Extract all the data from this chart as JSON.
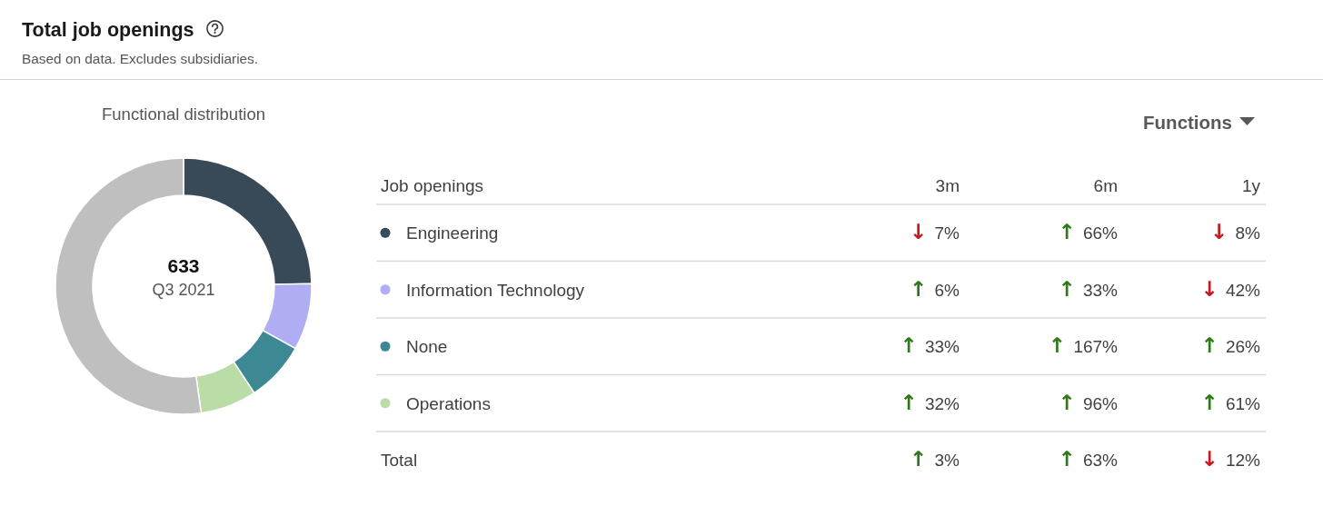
{
  "chart_data": [
    {
      "type": "other",
      "title": "Total job openings",
      "subtitle": "Based on data. Excludes subsidiaries."
    },
    {
      "type": "donut",
      "title": "Functional distribution",
      "categories": [
        null,
        null,
        null,
        null,
        null
      ],
      "values": [
        24.7,
        8.4,
        7.6,
        7.1,
        52.2
      ],
      "colors": [
        "#384a58",
        "#afadf3",
        "#3c8893",
        "#badca6",
        "#bfbfbf"
      ],
      "annotations": [
        "633",
        "Q3 2021"
      ]
    },
    {
      "type": "other",
      "ylabel": "Job openings",
      "categories": [
        "Engineering",
        "Information Technology",
        "None",
        "Operations",
        "Total"
      ],
      "colors": [
        "#384a58",
        "#afadf3",
        "#3c8893",
        "#badca6",
        null
      ],
      "series": [
        {
          "name": "3m",
          "values": [
            7,
            6,
            33,
            32,
            3
          ],
          "value_labels": [
            "↓ 7%",
            "↑ 6%",
            "↑ 33%",
            "↑ 32%",
            "↑ 3%"
          ],
          "colors": [
            "#c51a1f",
            "#2e7a18",
            "#2e7a18",
            "#2e7a18",
            "#2e7a18"
          ]
        },
        {
          "name": "6m",
          "values": [
            66,
            33,
            167,
            96,
            63
          ],
          "value_labels": [
            "↑ 66%",
            "↑ 33%",
            "↑ 167%",
            "↑ 96%",
            "↑ 63%"
          ],
          "colors": [
            "#2e7a18",
            "#2e7a18",
            "#2e7a18",
            "#2e7a18",
            "#2e7a18"
          ]
        },
        {
          "name": "1y",
          "values": [
            8,
            42,
            26,
            61,
            12
          ],
          "value_labels": [
            "↓ 8%",
            "↓ 42%",
            "↑ 26%",
            "↑ 61%",
            "↓ 12%"
          ],
          "colors": [
            "#c51a1f",
            "#c51a1f",
            "#2e7a18",
            "#2e7a18",
            "#c51a1f"
          ]
        }
      ],
      "annotations": [
        "Functions"
      ]
    }
  ]
}
